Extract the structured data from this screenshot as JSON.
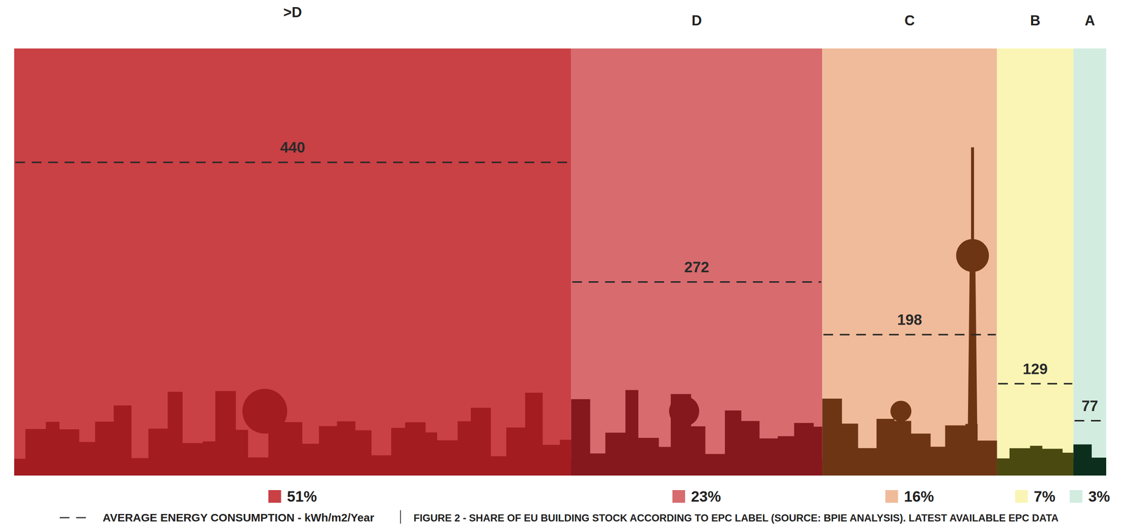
{
  "chart_data": {
    "type": "bar",
    "title": "FIGURE 2 - SHARE OF EU BUILDING STOCK ACCORDING TO EPC LABEL (SOURCE: BPIE ANALYSIS). LATEST AVAILABLE EPC DATA",
    "categories": [
      ">D",
      "D",
      "C",
      "B",
      "A"
    ],
    "colors": [
      "#c94045",
      "#d76b6e",
      "#f0bb9a",
      "#faf5b4",
      "#d2ece0"
    ],
    "xlim": [
      0,
      100
    ],
    "ylim": [
      0,
      600
    ],
    "tick_labels": false,
    "data_labels": true,
    "series": [
      {
        "values": [
          51,
          23,
          16,
          7,
          3
        ],
        "value_labels": [
          "51%",
          "23%",
          "16%",
          "7%",
          "3%"
        ]
      },
      {
        "name": "AVERAGE ENERGY CONSUMPTION - kWh/m2/Year",
        "type": "line",
        "line_style": "dashed",
        "values": [
          440,
          272,
          198,
          129,
          77
        ]
      }
    ]
  }
}
